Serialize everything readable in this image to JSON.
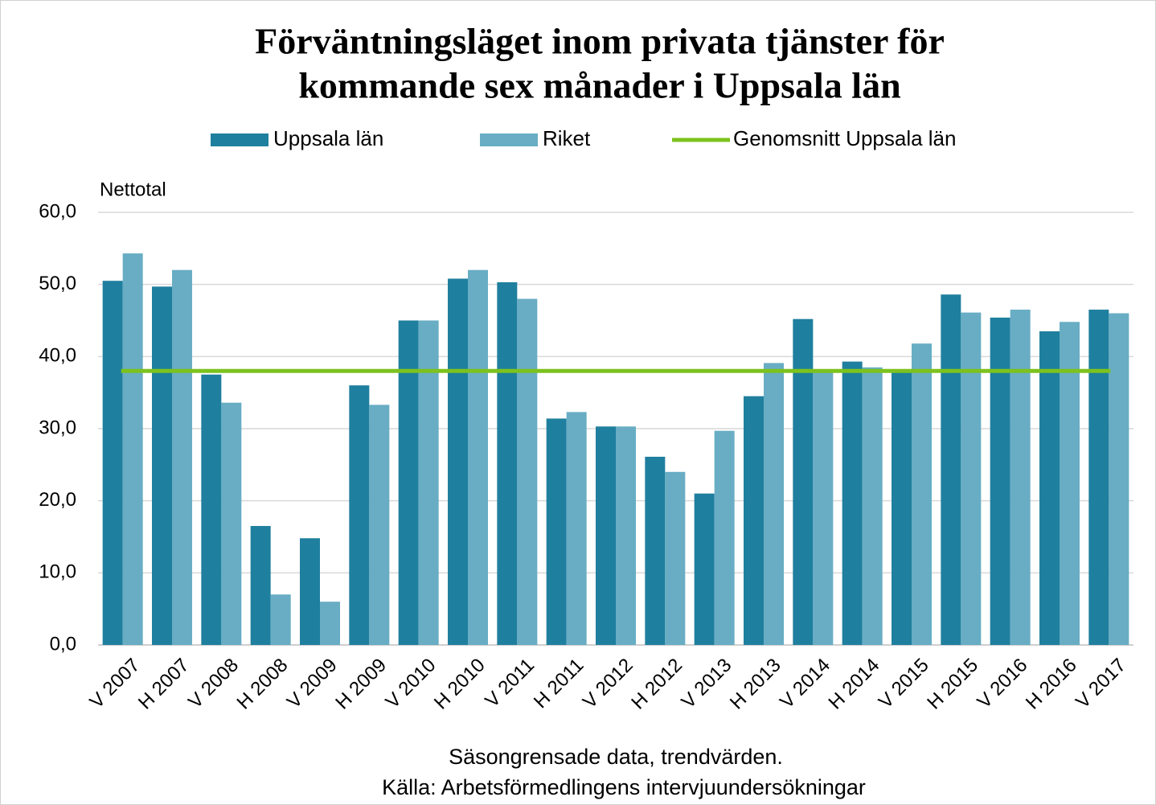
{
  "chart_data": {
    "type": "bar",
    "title": [
      "Förväntningsläget inom privata tjänster för",
      "kommande sex månader i Uppsala län"
    ],
    "y_label": "Nettotal",
    "footnotes": [
      "Säsongrensade data, trendvärden.",
      "Källa: Arbetsförmedlingens  intervjuundersökningar"
    ],
    "categories": [
      "V 2007",
      "H 2007",
      "V 2008",
      "H 2008",
      "V 2009",
      "H 2009",
      "V 2010",
      "H 2010",
      "V 2011",
      "H 2011",
      "V 2012",
      "H 2012",
      "V 2013",
      "H 2013",
      "V 2014",
      "H 2014",
      "V 2015",
      "H 2015",
      "V 2016",
      "H 2016",
      "V 2017"
    ],
    "series": [
      {
        "name": "Uppsala län",
        "color": "#1f7f9e",
        "values": [
          50.5,
          49.7,
          37.5,
          16.5,
          14.8,
          36.0,
          45.0,
          50.8,
          50.3,
          31.4,
          30.3,
          26.1,
          21.0,
          34.5,
          45.2,
          39.3,
          38.0,
          48.6,
          45.4,
          43.5,
          46.5
        ]
      },
      {
        "name": "Riket",
        "color": "#68adc4",
        "values": [
          54.3,
          52.0,
          33.6,
          7.0,
          6.0,
          33.3,
          45.0,
          52.0,
          48.0,
          32.3,
          30.3,
          24.0,
          29.7,
          39.1,
          38.0,
          38.5,
          41.8,
          46.1,
          46.5,
          44.8,
          46.0
        ]
      }
    ],
    "average": {
      "name": "Genomsnitt Uppsala län",
      "color": "#7dc21e",
      "value": 38.0
    },
    "ylim": [
      0,
      60
    ],
    "yticks": [
      {
        "value": 0,
        "label": "0,0"
      },
      {
        "value": 10,
        "label": "10,0"
      },
      {
        "value": 20,
        "label": "20,0"
      },
      {
        "value": 30,
        "label": "30,0"
      },
      {
        "value": 40,
        "label": "40,0"
      },
      {
        "value": 50,
        "label": "50,0"
      },
      {
        "value": 60,
        "label": "60,0"
      }
    ],
    "grid": true
  }
}
